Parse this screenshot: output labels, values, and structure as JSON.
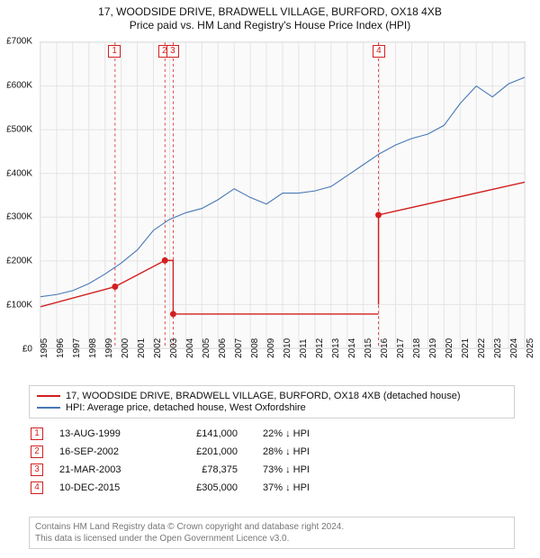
{
  "title": {
    "line1": "17, WOODSIDE DRIVE, BRADWELL VILLAGE, BURFORD, OX18 4XB",
    "line2": "Price paid vs. HM Land Registry's House Price Index (HPI)"
  },
  "chart": {
    "type": "line",
    "background_color": "#fafafa",
    "grid_color": "#e4e4e4",
    "plot_border_color": "#e4e4e4",
    "xlim": [
      1995,
      2025
    ],
    "ylim": [
      0,
      700000
    ],
    "ytick_step": 100000,
    "yticks": [
      "£0",
      "£100K",
      "£200K",
      "£300K",
      "£400K",
      "£500K",
      "£600K",
      "£700K"
    ],
    "xticks": [
      "1995",
      "1996",
      "1997",
      "1998",
      "1999",
      "2000",
      "2001",
      "2002",
      "2003",
      "2004",
      "2005",
      "2006",
      "2007",
      "2008",
      "2009",
      "2010",
      "2011",
      "2012",
      "2013",
      "2014",
      "2015",
      "2016",
      "2017",
      "2018",
      "2019",
      "2020",
      "2021",
      "2022",
      "2023",
      "2024",
      "2025"
    ],
    "series": {
      "hpi": {
        "label": "HPI: Average price, detached house, West Oxfordshire",
        "color": "#4878b4",
        "line_width": 1.1,
        "x": [
          1995,
          1996,
          1997,
          1998,
          1999,
          2000,
          2001,
          2002,
          2003,
          2004,
          2005,
          2006,
          2007,
          2008,
          2009,
          2010,
          2011,
          2012,
          2013,
          2014,
          2015,
          2016,
          2017,
          2018,
          2019,
          2020,
          2021,
          2022,
          2023,
          2024,
          2025
        ],
        "y": [
          118000,
          123000,
          132000,
          148000,
          170000,
          195000,
          225000,
          270000,
          295000,
          310000,
          320000,
          340000,
          365000,
          345000,
          330000,
          355000,
          355000,
          360000,
          370000,
          395000,
          420000,
          445000,
          465000,
          480000,
          490000,
          510000,
          560000,
          600000,
          575000,
          605000,
          620000
        ]
      },
      "price_paid": {
        "label": "17, WOODSIDE DRIVE, BRADWELL VILLAGE, BURFORD, OX18 4XB (detached house)",
        "color": "#d22020",
        "line_width": 1.4,
        "marker_radius": 3.5,
        "segments": [
          {
            "x0": 1995,
            "y0": 95000,
            "x1": 1999.62,
            "y1": 141000
          },
          {
            "x0": 1999.62,
            "y0": 141000,
            "x1": 2002.71,
            "y1": 201000
          },
          {
            "x0": 2002.71,
            "y0": 201000,
            "x1": 2003.22,
            "y1": 78375,
            "step": true
          },
          {
            "x0": 2003.22,
            "y0": 78375,
            "x1": 2015.94,
            "y1": 100000,
            "flat": true
          },
          {
            "x0": 2015.94,
            "y0": 100000,
            "x1": 2015.94,
            "y1": 305000,
            "step": true
          },
          {
            "x0": 2015.94,
            "y0": 305000,
            "x1": 2025,
            "y1": 380000
          }
        ],
        "markers": [
          {
            "x": 1999.62,
            "y": 141000
          },
          {
            "x": 2002.71,
            "y": 201000
          },
          {
            "x": 2003.22,
            "y": 78375
          },
          {
            "x": 2015.94,
            "y": 305000
          }
        ]
      }
    },
    "event_lines": {
      "color": "#d22020",
      "dash": "3,3",
      "line_width": 0.8,
      "x": [
        1999.62,
        2002.71,
        2003.22,
        2015.94
      ]
    },
    "event_boxes": [
      {
        "n": "1",
        "x": 1999.62
      },
      {
        "n": "2",
        "x": 2002.71
      },
      {
        "n": "3",
        "x": 2003.22
      },
      {
        "n": "4",
        "x": 2015.94
      }
    ]
  },
  "legend": {
    "items": [
      {
        "color": "#d22020",
        "text": "17, WOODSIDE DRIVE, BRADWELL VILLAGE, BURFORD, OX18 4XB (detached house)"
      },
      {
        "color": "#4878b4",
        "text": "HPI: Average price, detached house, West Oxfordshire"
      }
    ]
  },
  "transactions": {
    "box_color": "#d22020",
    "rows": [
      {
        "n": "1",
        "date": "13-AUG-1999",
        "price": "£141,000",
        "delta": "22% ↓ HPI"
      },
      {
        "n": "2",
        "date": "16-SEP-2002",
        "price": "£201,000",
        "delta": "28% ↓ HPI"
      },
      {
        "n": "3",
        "date": "21-MAR-2003",
        "price": "£78,375",
        "delta": "73% ↓ HPI"
      },
      {
        "n": "4",
        "date": "10-DEC-2015",
        "price": "£305,000",
        "delta": "37% ↓ HPI"
      }
    ]
  },
  "footer": {
    "line1": "Contains HM Land Registry data © Crown copyright and database right 2024.",
    "line2": "This data is licensed under the Open Government Licence v3.0."
  }
}
